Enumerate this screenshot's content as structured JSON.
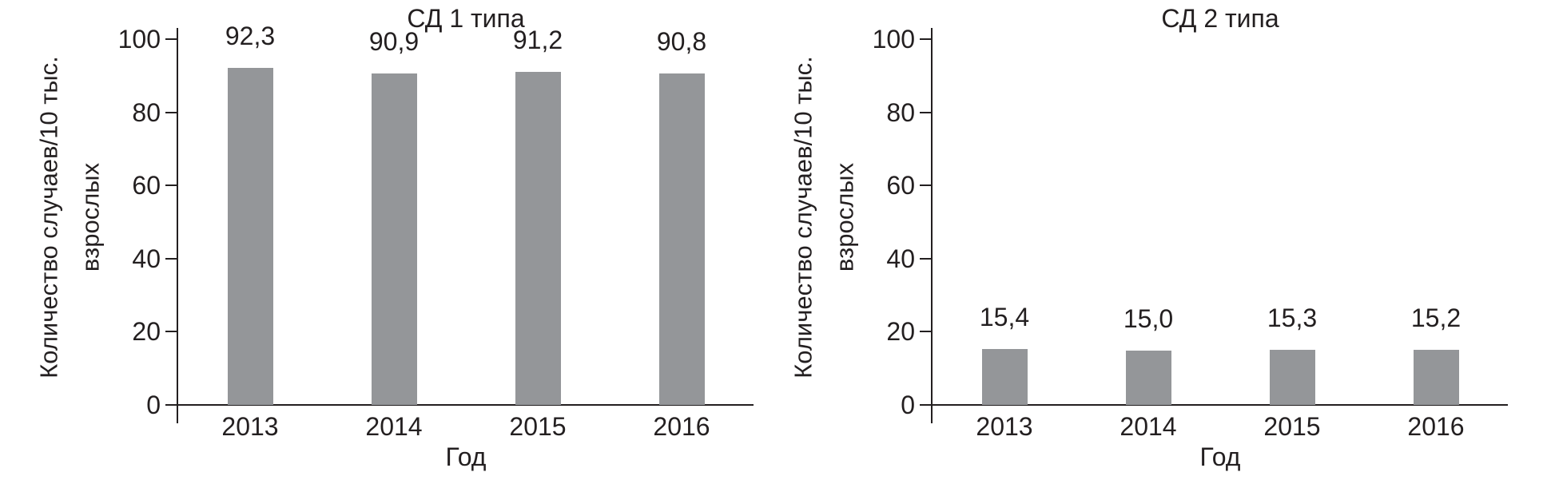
{
  "colors": {
    "background": "#ffffff",
    "bar": "#949699",
    "axis": "#231f20",
    "text": "#231f20"
  },
  "chart_data": [
    {
      "type": "bar",
      "title": "СД 1 типа",
      "categories": [
        "2013",
        "2014",
        "2015",
        "2016"
      ],
      "values": [
        92.3,
        90.9,
        91.2,
        90.8
      ],
      "value_labels": [
        "92,3",
        "90,9",
        "91,2",
        "90,8"
      ],
      "xlabel": "Год",
      "ylabel_line1": "Количество случаев/10 тыс.",
      "ylabel_line2": "взрослых",
      "yticks": [
        0,
        20,
        40,
        60,
        80,
        100
      ],
      "ylim": [
        0,
        100
      ],
      "grid": false,
      "legend": "none"
    },
    {
      "type": "bar",
      "title": "СД 2 типа",
      "categories": [
        "2013",
        "2014",
        "2015",
        "2016"
      ],
      "values": [
        15.4,
        15.0,
        15.3,
        15.2
      ],
      "value_labels": [
        "15,4",
        "15,0",
        "15,3",
        "15,2"
      ],
      "xlabel": "Год",
      "ylabel_line1": "Количество случаев/10 тыс.",
      "ylabel_line2": "взрослых",
      "yticks": [
        0,
        20,
        40,
        60,
        80,
        100
      ],
      "ylim": [
        0,
        100
      ],
      "grid": false,
      "legend": "none"
    }
  ]
}
